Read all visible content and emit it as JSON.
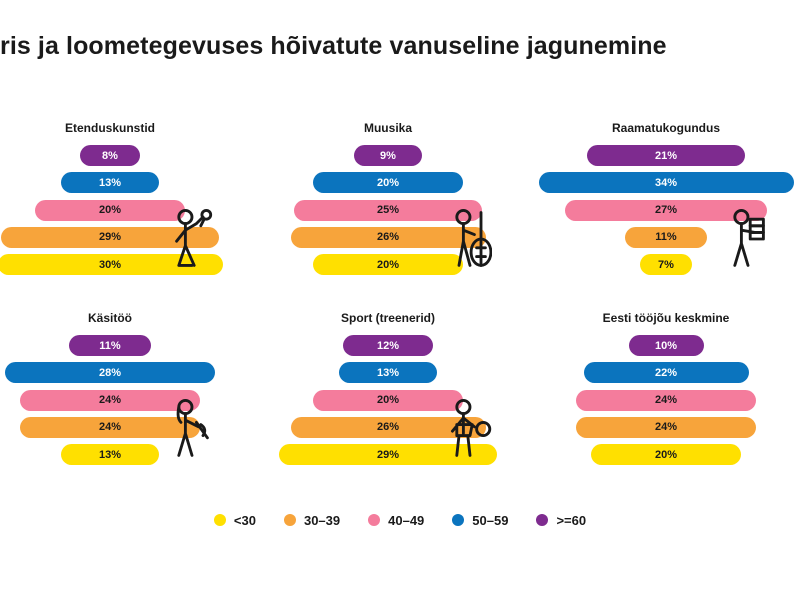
{
  "title": "ris ja loometegevuses hõivatute vanuseline jagunemine",
  "colors": {
    "<30": "#FFE000",
    "30–39": "#F7A43B",
    "40–49": "#F47C9C",
    "50–59": "#0B74BE",
    ">=60": "#7E2B8F"
  },
  "legend": [
    {
      "label": "<30",
      "color": "#FFE000"
    },
    {
      "label": "30–39",
      "color": "#F7A43B"
    },
    {
      "label": "40–49",
      "color": "#F47C9C"
    },
    {
      "label": "50–59",
      "color": "#0B74BE"
    },
    {
      "label": ">=60",
      "color": "#7E2B8F"
    }
  ],
  "chart_data": [
    {
      "type": "bar",
      "title": "Etenduskunstid",
      "categories": [
        ">=60",
        "50–59",
        "40–49",
        "30–39",
        "<30"
      ],
      "values": [
        8,
        13,
        20,
        29,
        30
      ],
      "labels": [
        "8%",
        "13%",
        "20%",
        "29%",
        "30%"
      ],
      "icon": "performer-icon"
    },
    {
      "type": "bar",
      "title": "Muusika",
      "categories": [
        ">=60",
        "50–59",
        "40–49",
        "30–39",
        "<30"
      ],
      "values": [
        9,
        20,
        25,
        26,
        20
      ],
      "labels": [
        "9%",
        "20%",
        "25%",
        "26%",
        "20%"
      ],
      "icon": "cellist-icon"
    },
    {
      "type": "bar",
      "title": "Raamatukogundus",
      "categories": [
        ">=60",
        "50–59",
        "40–49",
        "30–39",
        "<30"
      ],
      "values": [
        21,
        34,
        27,
        11,
        7
      ],
      "labels": [
        "21%",
        "34%",
        "27%",
        "11%",
        "7%"
      ],
      "icon": "librarian-icon"
    },
    {
      "type": "bar",
      "title": "Käsitöö",
      "categories": [
        ">=60",
        "50–59",
        "40–49",
        "30–39",
        "<30"
      ],
      "values": [
        11,
        28,
        24,
        24,
        13
      ],
      "labels": [
        "11%",
        "28%",
        "24%",
        "24%",
        "13%"
      ],
      "icon": "crafter-icon"
    },
    {
      "type": "bar",
      "title": "Sport (treenerid)",
      "categories": [
        ">=60",
        "50–59",
        "40–49",
        "30–39",
        "<30"
      ],
      "values": [
        12,
        13,
        20,
        26,
        29
      ],
      "labels": [
        "12%",
        "13%",
        "20%",
        "26%",
        "29%"
      ],
      "icon": "athlete-icon"
    },
    {
      "type": "bar",
      "title": "Eesti tööjõu keskmine",
      "categories": [
        ">=60",
        "50–59",
        "40–49",
        "30–39",
        "<30"
      ],
      "values": [
        10,
        22,
        24,
        24,
        20
      ],
      "labels": [
        "10%",
        "22%",
        "24%",
        "24%",
        "20%"
      ],
      "icon": null
    }
  ]
}
